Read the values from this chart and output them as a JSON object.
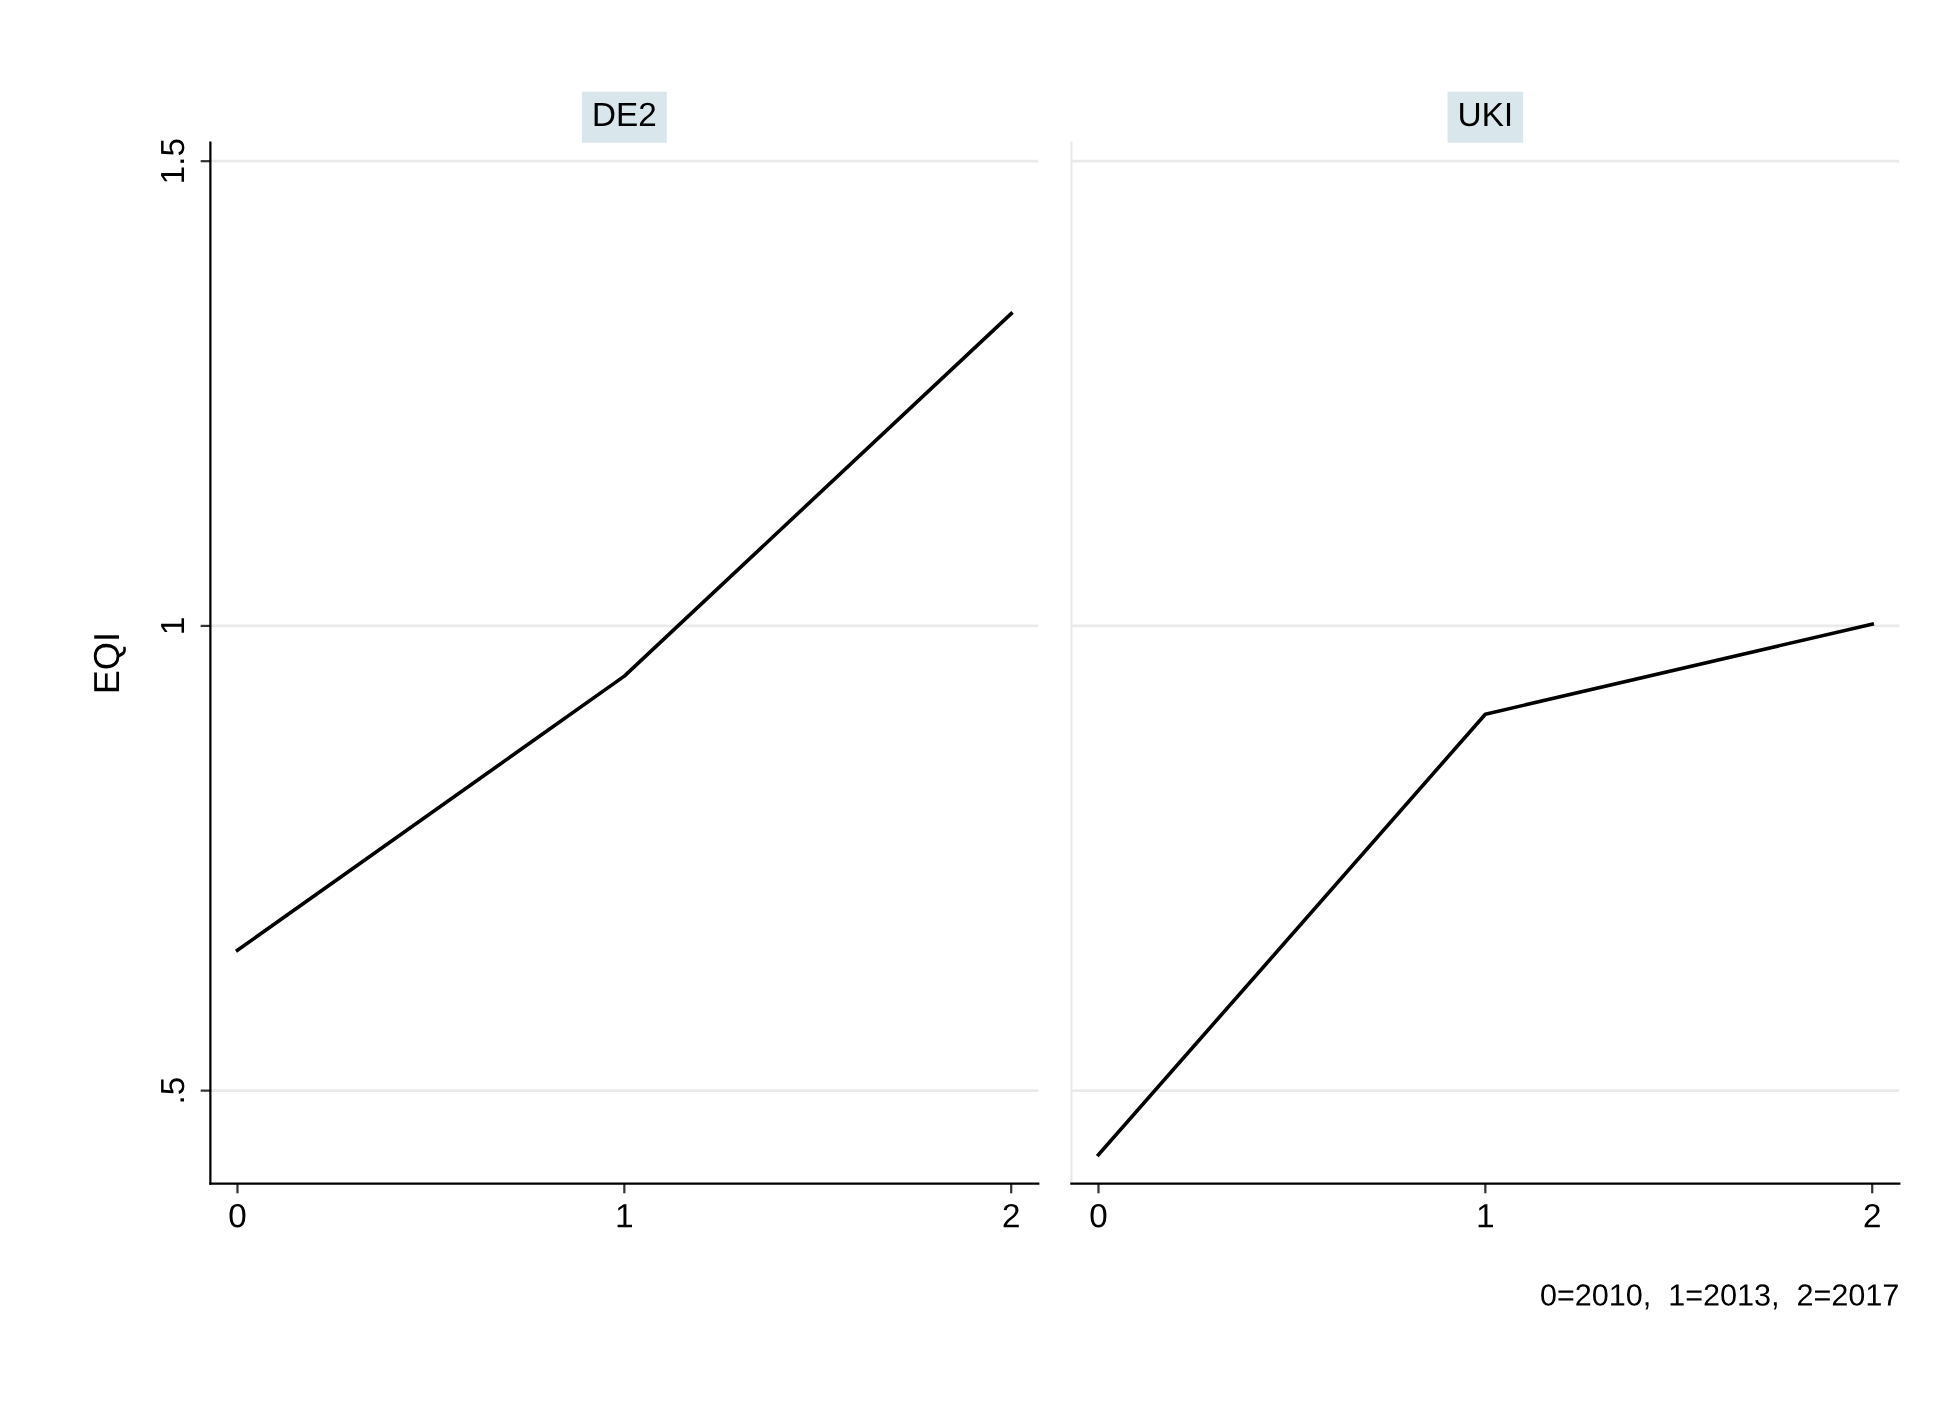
{
  "chart_data": [
    {
      "type": "line",
      "title": "DE2",
      "ylabel": "EQI",
      "x": [
        0,
        1,
        2
      ],
      "series": [
        {
          "color": "#000000",
          "values": [
            0.651,
            0.946,
            1.336
          ]
        }
      ],
      "xlim": [
        -0.07,
        2.07
      ],
      "xticks": [
        0,
        1,
        2
      ],
      "ylim": [
        0.4,
        1.52
      ],
      "yticks": [
        {
          "value": 0.5,
          "label": ".5"
        },
        1,
        1.5
      ],
      "grid": "y"
    },
    {
      "type": "line",
      "title": "UKI",
      "x": [
        0,
        1,
        2
      ],
      "series": [
        {
          "color": "#000000",
          "values": [
            0.431,
            0.905,
            1.002
          ]
        }
      ],
      "xlim": [
        -0.07,
        2.07
      ],
      "xticks": [
        0,
        1,
        2
      ],
      "ylim": [
        0.4,
        1.52
      ],
      "yticks": [
        {
          "value": 0.5,
          "label": null
        },
        {
          "value": 1,
          "label": null
        },
        {
          "value": 1.5,
          "label": null
        }
      ],
      "grid": "y",
      "tick_labels": "x",
      "annotations": [
        "0=2010,  1=2013,  2=2017"
      ]
    }
  ]
}
